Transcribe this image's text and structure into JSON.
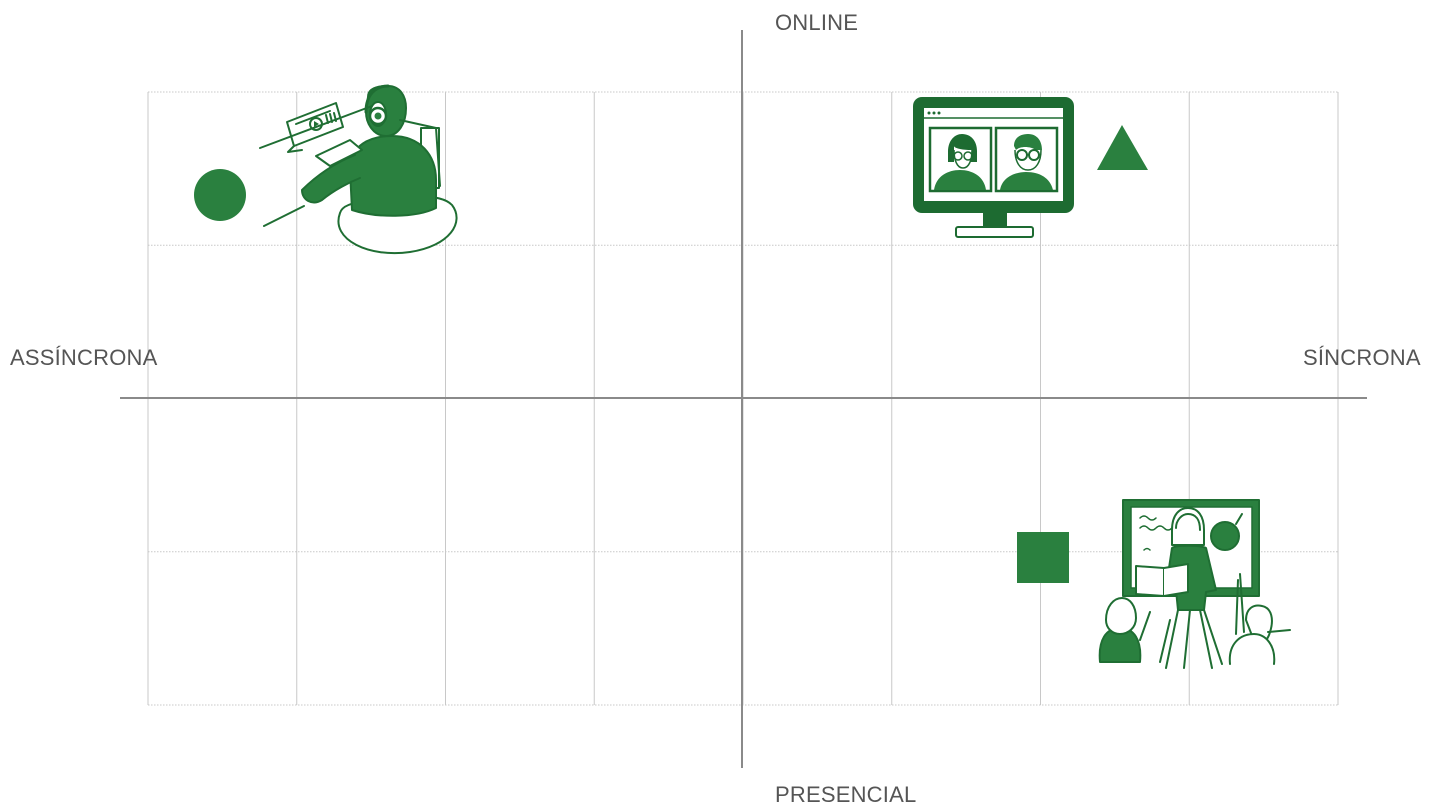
{
  "axes": {
    "top": "ONLINE",
    "bottom": "PRESENCIAL",
    "left": "ASSÍNCRONA",
    "right": "SÍNCRONA"
  },
  "colors": {
    "accent": "#2a803f",
    "accent_dark": "#1d6b31",
    "axis": "#888888",
    "grid": "#c8c8c8",
    "label": "#555555"
  },
  "markers": [
    {
      "shape": "circle",
      "quadrant": "online-assincrona",
      "icon": "student-with-headphones-laptop-illustration"
    },
    {
      "shape": "triangle",
      "quadrant": "online-sincrona",
      "icon": "video-call-monitor-illustration"
    },
    {
      "shape": "square",
      "quadrant": "presencial-sincrona",
      "icon": "classroom-teacher-illustration"
    }
  ]
}
